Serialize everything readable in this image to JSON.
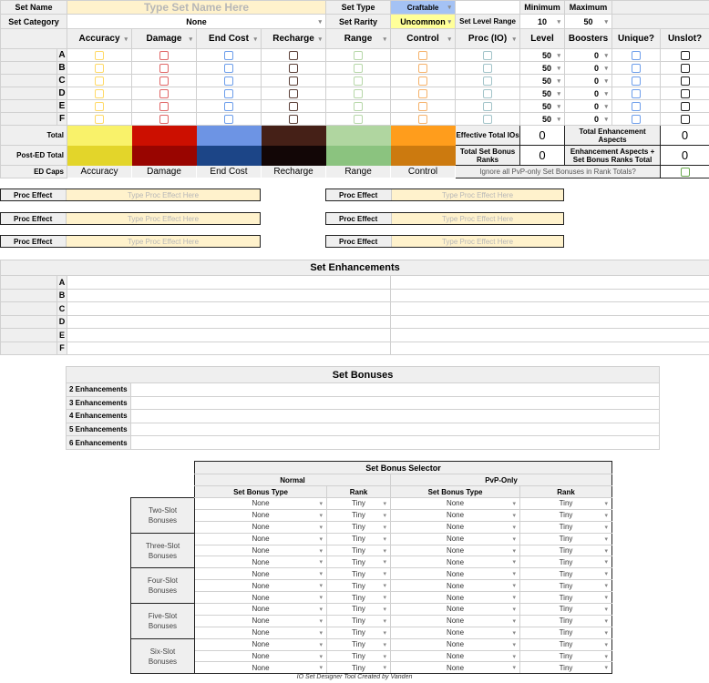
{
  "header": {
    "set_name_label": "Set Name",
    "set_name_placeholder": "Type Set Name Here",
    "set_type_label": "Set Type",
    "set_type_value": "Craftable",
    "minimum_label": "Minimum",
    "maximum_label": "Maximum",
    "set_category_label": "Set Category",
    "set_category_value": "None",
    "set_rarity_label": "Set Rarity",
    "set_rarity_value": "Uncommon",
    "level_range_label": "Set Level Range",
    "level_min": "10",
    "level_max": "50"
  },
  "columns": [
    {
      "label": "Accuracy",
      "color": "#ffd966",
      "total_color": "#f9f26a",
      "post_ed_color": "#e3d52a"
    },
    {
      "label": "Damage",
      "color": "#e06666",
      "total_color": "#cc0f00",
      "post_ed_color": "#990500"
    },
    {
      "label": "End Cost",
      "color": "#6d9eeb",
      "total_color": "#6d94e4",
      "post_ed_color": "#1c4587"
    },
    {
      "label": "Recharge",
      "color": "#5b4038",
      "total_color": "#452017",
      "post_ed_color": "#120606"
    },
    {
      "label": "Range",
      "color": "#b6d7a8",
      "total_color": "#b0d6a0",
      "post_ed_color": "#8bc37f"
    },
    {
      "label": "Control",
      "color": "#f6b26b",
      "total_color": "#ff9d1c",
      "post_ed_color": "#cc7a0f"
    }
  ],
  "proc_column": {
    "label": "Proc (IO)",
    "color": "#a2c4c9"
  },
  "level_label": "Level",
  "boosters_label": "Boosters",
  "unique_label": "Unique?",
  "unique_color": "#6d9eeb",
  "unslot_label": "Unslot?",
  "unslot_color": "#222222",
  "slots": [
    {
      "letter": "A",
      "level": "50",
      "boosters": "0"
    },
    {
      "letter": "B",
      "level": "50",
      "boosters": "0"
    },
    {
      "letter": "C",
      "level": "50",
      "boosters": "0"
    },
    {
      "letter": "D",
      "level": "50",
      "boosters": "0"
    },
    {
      "letter": "E",
      "level": "50",
      "boosters": "0"
    },
    {
      "letter": "F",
      "level": "50",
      "boosters": "0"
    }
  ],
  "total_label": "Total",
  "post_ed_label": "Post-ED Total",
  "ed_caps_label": "ED Caps",
  "stats": {
    "effective_ios_label": "Effective Total IOs",
    "effective_ios": "0",
    "total_aspects_label": "Total Enhancement Aspects",
    "total_aspects": "0",
    "bonus_ranks_label": "Total Set Bonus Ranks",
    "bonus_ranks": "0",
    "aspects_plus_ranks_label": "Enhancement Aspects + Set Bonus Ranks Total",
    "aspects_plus_ranks": "0",
    "ignore_pvp_label": "Ignore all PvP-only Set Bonuses in Rank Totals?",
    "ignore_pvp_color": "#6aa84f"
  },
  "proc_effects": [
    {
      "label": "Proc Effect",
      "placeholder": "Type Proc Effect Here"
    },
    {
      "label": "Proc Effect",
      "placeholder": "Type Proc Effect Here"
    },
    {
      "label": "Proc Effect",
      "placeholder": "Type Proc Effect Here"
    },
    {
      "label": "Proc Effect",
      "placeholder": "Type Proc Effect Here"
    },
    {
      "label": "Proc Effect",
      "placeholder": "Type Proc Effect Here"
    },
    {
      "label": "Proc Effect",
      "placeholder": "Type Proc Effect Here"
    }
  ],
  "set_enhancements": {
    "title": "Set Enhancements",
    "rows": [
      "A",
      "B",
      "C",
      "D",
      "E",
      "F"
    ]
  },
  "set_bonuses": {
    "title": "Set Bonuses",
    "rows": [
      "2 Enhancements",
      "3 Enhancements",
      "4 Enhancements",
      "5 Enhancements",
      "6 Enhancements"
    ]
  },
  "selector": {
    "title": "Set Bonus Selector",
    "normal": "Normal",
    "pvp": "PvP-Only",
    "type_header": "Set Bonus Type",
    "rank_header": "Rank",
    "groups": [
      {
        "label": "Two-Slot Bonuses"
      },
      {
        "label": "Three-Slot Bonuses"
      },
      {
        "label": "Four-Slot Bonuses"
      },
      {
        "label": "Five-Slot Bonuses"
      },
      {
        "label": "Six-Slot Bonuses"
      }
    ],
    "default_type": "None",
    "default_rank": "Tiny"
  },
  "footer": "IO Set Designer Tool Created by Vanden"
}
